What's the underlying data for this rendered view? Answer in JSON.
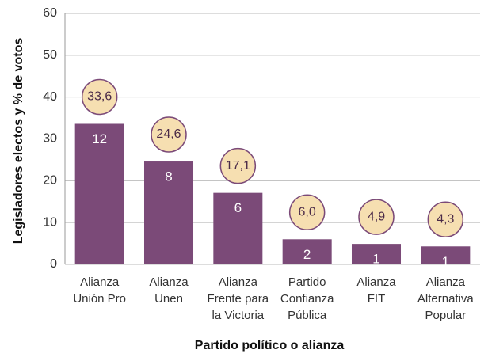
{
  "chart_data": {
    "type": "bar",
    "xlabel": "Partido político o alianza",
    "ylabel": "Legisladores electos y % de votos",
    "categories": [
      [
        "Alianza",
        "Unión Pro"
      ],
      [
        "Alianza",
        "Unen"
      ],
      [
        "Alianza",
        "Frente para",
        "la Victoria"
      ],
      [
        "Partido",
        "Confianza",
        "Pública"
      ],
      [
        "Alianza",
        "FIT"
      ],
      [
        "Alianza",
        "Alternativa",
        "Popular"
      ]
    ],
    "values": [
      33.6,
      24.6,
      17.1,
      6.0,
      4.9,
      4.3
    ],
    "value_labels": [
      "33,6",
      "24,6",
      "17,1",
      "6,0",
      "4,9",
      "4,3"
    ],
    "seats": [
      12,
      8,
      6,
      2,
      1,
      1
    ],
    "color": "#7b4a78",
    "ylim": [
      0,
      60
    ],
    "yticks": [
      0,
      10,
      20,
      30,
      40,
      50,
      60
    ],
    "grid": true
  }
}
